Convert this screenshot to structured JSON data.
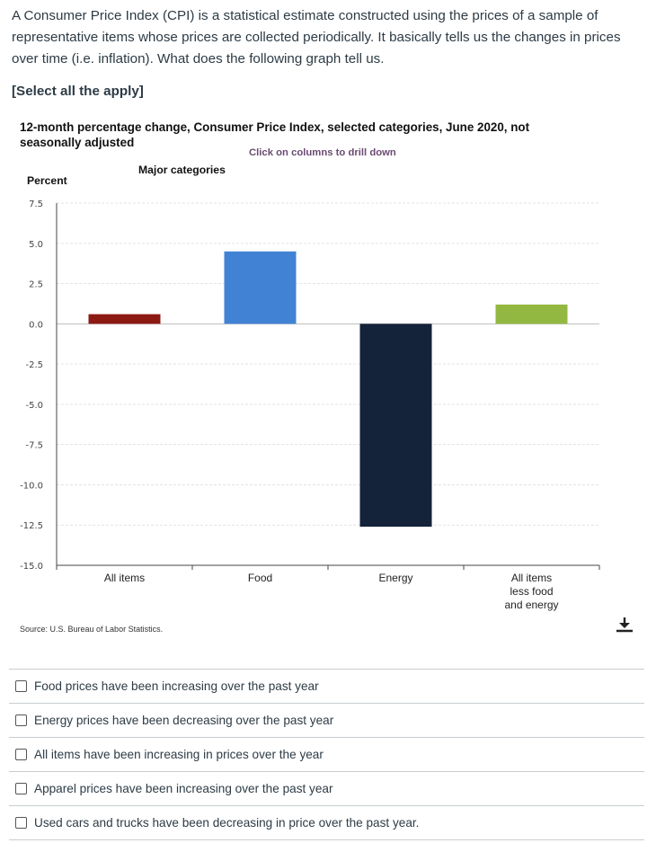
{
  "question": {
    "text": "A Consumer Price Index (CPI) is a statistical estimate constructed using the prices of a sample of representative items whose prices are collected periodically. It basically tells us the changes in prices over time (i.e. inflation). What does the following graph tell us.",
    "instruction": "[Select all the apply]"
  },
  "chart_data": {
    "type": "bar",
    "title": "12-month percentage change, Consumer Price Index, selected categories, June 2020, not seasonally adjusted",
    "drill_hint": "Click on columns to drill down",
    "subtitle": "Major categories",
    "ylabel": "Percent",
    "xlabel": "",
    "ylim": [
      -15.0,
      7.5
    ],
    "yticks": [
      "7.5",
      "5.0",
      "2.5",
      "0.0",
      "-2.5",
      "-5.0",
      "-7.5",
      "-10.0",
      "-12.5",
      "-15.0"
    ],
    "ytick_values": [
      7.5,
      5.0,
      2.5,
      0.0,
      -2.5,
      -5.0,
      -7.5,
      -10.0,
      -12.5,
      -15.0
    ],
    "categories": [
      "All items",
      "Food",
      "Energy",
      "All items less food and energy"
    ],
    "category_lines": [
      [
        "All items"
      ],
      [
        "Food"
      ],
      [
        "Energy"
      ],
      [
        "All items",
        "less food",
        "and energy"
      ]
    ],
    "values": [
      0.6,
      4.5,
      -12.6,
      1.2
    ],
    "colors": [
      "#8b1a13",
      "#4282d5",
      "#14223a",
      "#93b841"
    ],
    "grid": true,
    "source": "Source: U.S. Bureau of Labor Statistics."
  },
  "options": [
    {
      "label": "Food prices have been increasing over the past year"
    },
    {
      "label": "Energy prices have been decreasing over the past year"
    },
    {
      "label": "All items have been increasing in prices over the year"
    },
    {
      "label": "Apparel prices have been increasing over the past year"
    },
    {
      "label": "Used cars and trucks have been decreasing in price over the past year."
    }
  ]
}
